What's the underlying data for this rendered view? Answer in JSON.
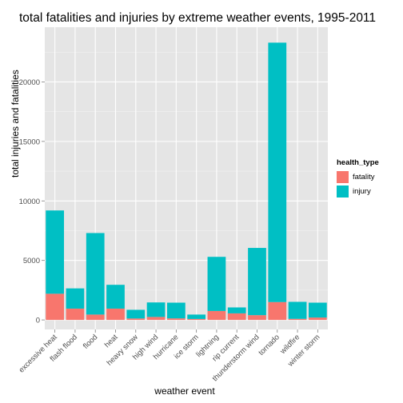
{
  "chart_data": {
    "type": "bar",
    "stacked": true,
    "title": "total fatalities and injuries by extreme weather events, 1995-2011",
    "xlabel": "weather event",
    "ylabel": "total injuries and fatalities",
    "legend_title": "health_type",
    "legend_position": "right",
    "grid": true,
    "categories": [
      "excessive heat",
      "flash flood",
      "flood",
      "heat",
      "heavy snow",
      "high wind",
      "hurricane",
      "ice storm",
      "lightning",
      "rip current",
      "thunderstorm wind",
      "tornado",
      "wildfire",
      "winter storm"
    ],
    "series": [
      {
        "name": "fatality",
        "color": "#F8766D",
        "values": [
          2200,
          950,
          450,
          950,
          120,
          250,
          130,
          80,
          750,
          550,
          400,
          1500,
          90,
          200
        ]
      },
      {
        "name": "injury",
        "color": "#00BFC4",
        "values": [
          7000,
          1700,
          6850,
          2000,
          730,
          1220,
          1320,
          370,
          4550,
          500,
          5650,
          21800,
          1430,
          1250
        ]
      }
    ],
    "yticks": [
      0,
      5000,
      10000,
      15000,
      20000
    ],
    "ylim": [
      -800,
      24600
    ]
  }
}
